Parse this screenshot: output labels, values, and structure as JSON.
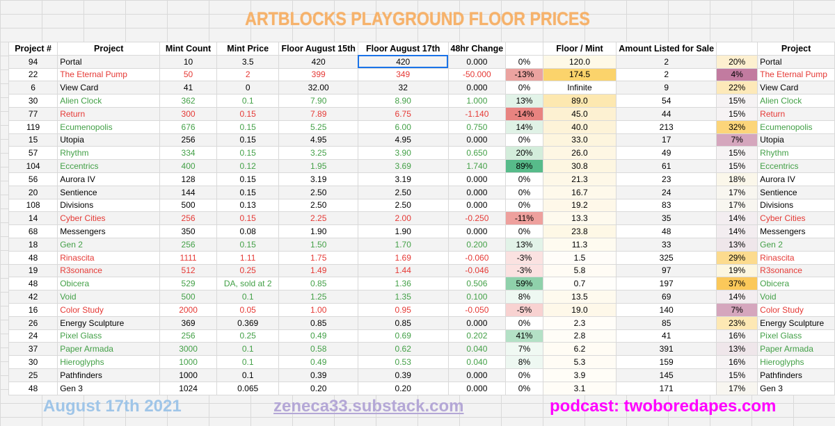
{
  "title": "ARTBLOCKS PLAYGROUND FLOOR PRICES",
  "headers": [
    "Project #",
    "Project",
    "Mint Count",
    "Mint Price",
    "Floor August 15th",
    "Floor August 17th",
    "48hr Change",
    "",
    "Floor / Mint",
    "Amount Listed for Sale",
    "",
    "Project"
  ],
  "rows": [
    {
      "num": "94",
      "project": "Portal",
      "mint_count": "10",
      "mint_price": "3.5",
      "floor15": "420",
      "floor17": "420",
      "change": "0.000",
      "pct": "0%",
      "floor_mint": "120.0",
      "listed": "2",
      "listed_pct": "20%",
      "project2": "Portal",
      "tone": "black",
      "pct_bg": "#ffffff",
      "fm_bg": "#fef9e7",
      "lp_bg": "#fdf0d0"
    },
    {
      "num": "22",
      "project": "The Eternal Pump",
      "mint_count": "50",
      "mint_price": "2",
      "floor15": "399",
      "floor17": "349",
      "change": "-50.000",
      "pct": "-13%",
      "floor_mint": "174.5",
      "listed": "2",
      "listed_pct": "4%",
      "project2": "The Eternal Pump",
      "tone": "red",
      "pct_bg": "#eba3a0",
      "fm_bg": "#fbd36b",
      "lp_bg": "#c27ba0"
    },
    {
      "num": "6",
      "project": "View Card",
      "mint_count": "41",
      "mint_price": "0",
      "floor15": "32.00",
      "floor17": "32",
      "change": "0.000",
      "pct": "0%",
      "floor_mint": "Infinite",
      "listed": "9",
      "listed_pct": "22%",
      "project2": "View Card",
      "tone": "black",
      "pct_bg": "#ffffff",
      "fm_bg": "#ffffff",
      "lp_bg": "#fde9b9"
    },
    {
      "num": "30",
      "project": "Alien Clock",
      "mint_count": "362",
      "mint_price": "0.1",
      "floor15": "7.90",
      "floor17": "8.90",
      "change": "1.000",
      "pct": "13%",
      "floor_mint": "89.0",
      "listed": "54",
      "listed_pct": "15%",
      "project2": "Alien Clock",
      "tone": "green",
      "pct_bg": "#e2f3e8",
      "fm_bg": "#fde8b0",
      "lp_bg": "#f6f3f4"
    },
    {
      "num": "77",
      "project": "Return",
      "mint_count": "300",
      "mint_price": "0.15",
      "floor15": "7.89",
      "floor17": "6.75",
      "change": "-1.140",
      "pct": "-14%",
      "floor_mint": "45.0",
      "listed": "44",
      "listed_pct": "15%",
      "project2": "Return",
      "tone": "red",
      "pct_bg": "#e88380",
      "fm_bg": "#fdf1d2",
      "lp_bg": "#f6f3f4"
    },
    {
      "num": "119",
      "project": "Ecumenopolis",
      "mint_count": "676",
      "mint_price": "0.15",
      "floor15": "5.25",
      "floor17": "6.00",
      "change": "0.750",
      "pct": "14%",
      "floor_mint": "40.0",
      "listed": "213",
      "listed_pct": "32%",
      "project2": "Ecumenopolis",
      "tone": "green",
      "pct_bg": "#e0f2e6",
      "fm_bg": "#fdf3d8",
      "lp_bg": "#fcd57a"
    },
    {
      "num": "15",
      "project": "Utopia",
      "mint_count": "256",
      "mint_price": "0.15",
      "floor15": "4.95",
      "floor17": "4.95",
      "change": "0.000",
      "pct": "0%",
      "floor_mint": "33.0",
      "listed": "17",
      "listed_pct": "7%",
      "project2": "Utopia",
      "tone": "black",
      "pct_bg": "#ffffff",
      "fm_bg": "#fdf5de",
      "lp_bg": "#d5a6bd"
    },
    {
      "num": "57",
      "project": "Rhythm",
      "mint_count": "334",
      "mint_price": "0.15",
      "floor15": "3.25",
      "floor17": "3.90",
      "change": "0.650",
      "pct": "20%",
      "floor_mint": "26.0",
      "listed": "49",
      "listed_pct": "15%",
      "project2": "Rhythm",
      "tone": "green",
      "pct_bg": "#d3eddb",
      "fm_bg": "#fef7e4",
      "lp_bg": "#f6f3f4"
    },
    {
      "num": "104",
      "project": "Eccentrics",
      "mint_count": "400",
      "mint_price": "0.12",
      "floor15": "1.95",
      "floor17": "3.69",
      "change": "1.740",
      "pct": "89%",
      "floor_mint": "30.8",
      "listed": "61",
      "listed_pct": "15%",
      "project2": "Eccentrics",
      "tone": "green",
      "pct_bg": "#57bb8a",
      "fm_bg": "#fdf6e1",
      "lp_bg": "#f6f3f4"
    },
    {
      "num": "56",
      "project": "Aurora IV",
      "mint_count": "128",
      "mint_price": "0.15",
      "floor15": "3.19",
      "floor17": "3.19",
      "change": "0.000",
      "pct": "0%",
      "floor_mint": "21.3",
      "listed": "23",
      "listed_pct": "18%",
      "project2": "Aurora IV",
      "tone": "black",
      "pct_bg": "#ffffff",
      "fm_bg": "#fef8e8",
      "lp_bg": "#fbf7ea"
    },
    {
      "num": "20",
      "project": "Sentience",
      "mint_count": "144",
      "mint_price": "0.15",
      "floor15": "2.50",
      "floor17": "2.50",
      "change": "0.000",
      "pct": "0%",
      "floor_mint": "16.7",
      "listed": "24",
      "listed_pct": "17%",
      "project2": "Sentience",
      "tone": "black",
      "pct_bg": "#ffffff",
      "fm_bg": "#fef9eb",
      "lp_bg": "#f8f6f0"
    },
    {
      "num": "108",
      "project": "Divisions",
      "mint_count": "500",
      "mint_price": "0.13",
      "floor15": "2.50",
      "floor17": "2.50",
      "change": "0.000",
      "pct": "0%",
      "floor_mint": "19.2",
      "listed": "83",
      "listed_pct": "17%",
      "project2": "Divisions",
      "tone": "black",
      "pct_bg": "#ffffff",
      "fm_bg": "#fef8e9",
      "lp_bg": "#f8f6f0"
    },
    {
      "num": "14",
      "project": "Cyber Cities",
      "mint_count": "256",
      "mint_price": "0.15",
      "floor15": "2.25",
      "floor17": "2.00",
      "change": "-0.250",
      "pct": "-11%",
      "floor_mint": "13.3",
      "listed": "35",
      "listed_pct": "14%",
      "project2": "Cyber Cities",
      "tone": "red",
      "pct_bg": "#eea09d",
      "fm_bg": "#fefaee",
      "lp_bg": "#f3edf0"
    },
    {
      "num": "68",
      "project": "Messengers",
      "mint_count": "350",
      "mint_price": "0.08",
      "floor15": "1.90",
      "floor17": "1.90",
      "change": "0.000",
      "pct": "0%",
      "floor_mint": "23.8",
      "listed": "48",
      "listed_pct": "14%",
      "project2": "Messengers",
      "tone": "black",
      "pct_bg": "#ffffff",
      "fm_bg": "#fef8e6",
      "lp_bg": "#f3edf0"
    },
    {
      "num": "18",
      "project": "Gen 2",
      "mint_count": "256",
      "mint_price": "0.15",
      "floor15": "1.50",
      "floor17": "1.70",
      "change": "0.200",
      "pct": "13%",
      "floor_mint": "11.3",
      "listed": "33",
      "listed_pct": "13%",
      "project2": "Gen 2",
      "tone": "green",
      "pct_bg": "#e2f3e8",
      "fm_bg": "#fefbf0",
      "lp_bg": "#efe6ea"
    },
    {
      "num": "48",
      "project": "Rinascita",
      "mint_count": "1111",
      "mint_price": "1.11",
      "floor15": "1.75",
      "floor17": "1.69",
      "change": "-0.060",
      "pct": "-3%",
      "floor_mint": "1.5",
      "listed": "325",
      "listed_pct": "29%",
      "project2": "Rinascita",
      "tone": "red",
      "pct_bg": "#fbe2e1",
      "fm_bg": "#fffdf9",
      "lp_bg": "#fcdb8e"
    },
    {
      "num": "19",
      "project": "R3sonance",
      "mint_count": "512",
      "mint_price": "0.25",
      "floor15": "1.49",
      "floor17": "1.44",
      "change": "-0.046",
      "pct": "-3%",
      "floor_mint": "5.8",
      "listed": "97",
      "listed_pct": "19%",
      "project2": "R3sonance",
      "tone": "red",
      "pct_bg": "#fbe2e1",
      "fm_bg": "#fffcf5",
      "lp_bg": "#fcf6e0"
    },
    {
      "num": "48",
      "project": "Obicera",
      "mint_count": "529",
      "mint_price": "DA, sold at 2",
      "floor15": "0.85",
      "floor17": "1.36",
      "change": "0.506",
      "pct": "59%",
      "floor_mint": "0.7",
      "listed": "197",
      "listed_pct": "37%",
      "project2": "Obicera",
      "tone": "green",
      "pct_bg": "#8fd1ab",
      "fm_bg": "#fffefb",
      "lp_bg": "#fbc85a"
    },
    {
      "num": "42",
      "project": "Void",
      "mint_count": "500",
      "mint_price": "0.1",
      "floor15": "1.25",
      "floor17": "1.35",
      "change": "0.100",
      "pct": "8%",
      "floor_mint": "13.5",
      "listed": "69",
      "listed_pct": "14%",
      "project2": "Void",
      "tone": "green",
      "pct_bg": "#eef8f2",
      "fm_bg": "#fefaee",
      "lp_bg": "#f3edf0"
    },
    {
      "num": "16",
      "project": "Color Study",
      "mint_count": "2000",
      "mint_price": "0.05",
      "floor15": "1.00",
      "floor17": "0.95",
      "change": "-0.050",
      "pct": "-5%",
      "floor_mint": "19.0",
      "listed": "140",
      "listed_pct": "7%",
      "project2": "Color Study",
      "tone": "red",
      "pct_bg": "#f8d2d1",
      "fm_bg": "#fef8e9",
      "lp_bg": "#d5a6bd"
    },
    {
      "num": "26",
      "project": "Energy Sculpture",
      "mint_count": "369",
      "mint_price": "0.369",
      "floor15": "0.85",
      "floor17": "0.85",
      "change": "0.000",
      "pct": "0%",
      "floor_mint": "2.3",
      "listed": "85",
      "listed_pct": "23%",
      "project2": "Energy Sculpture",
      "tone": "black",
      "pct_bg": "#ffffff",
      "fm_bg": "#fffdf8",
      "lp_bg": "#fde8b4"
    },
    {
      "num": "24",
      "project": "Pixel Glass",
      "mint_count": "256",
      "mint_price": "0.25",
      "floor15": "0.49",
      "floor17": "0.69",
      "change": "0.202",
      "pct": "41%",
      "floor_mint": "2.8",
      "listed": "41",
      "listed_pct": "16%",
      "project2": "Pixel Glass",
      "tone": "green",
      "pct_bg": "#b4e1c6",
      "fm_bg": "#fffdf7",
      "lp_bg": "#f6f3f4"
    },
    {
      "num": "37",
      "project": "Paper Armada",
      "mint_count": "3000",
      "mint_price": "0.1",
      "floor15": "0.58",
      "floor17": "0.62",
      "change": "0.040",
      "pct": "7%",
      "floor_mint": "6.2",
      "listed": "391",
      "listed_pct": "13%",
      "project2": "Paper Armada",
      "tone": "green",
      "pct_bg": "#f0f9f3",
      "fm_bg": "#fffcf4",
      "lp_bg": "#efe6ea"
    },
    {
      "num": "30",
      "project": "Hieroglyphs",
      "mint_count": "1000",
      "mint_price": "0.1",
      "floor15": "0.49",
      "floor17": "0.53",
      "change": "0.040",
      "pct": "8%",
      "floor_mint": "5.3",
      "listed": "159",
      "listed_pct": "16%",
      "project2": "Hieroglyphs",
      "tone": "green",
      "pct_bg": "#eef8f2",
      "fm_bg": "#fffcf5",
      "lp_bg": "#f6f3f4"
    },
    {
      "num": "25",
      "project": "Pathfinders",
      "mint_count": "1000",
      "mint_price": "0.1",
      "floor15": "0.39",
      "floor17": "0.39",
      "change": "0.000",
      "pct": "0%",
      "floor_mint": "3.9",
      "listed": "145",
      "listed_pct": "15%",
      "project2": "Pathfinders",
      "tone": "black",
      "pct_bg": "#ffffff",
      "fm_bg": "#fffdf7",
      "lp_bg": "#f6f3f4"
    },
    {
      "num": "48",
      "project": "Gen 3",
      "mint_count": "1024",
      "mint_price": "0.065",
      "floor15": "0.20",
      "floor17": "0.20",
      "change": "0.000",
      "pct": "0%",
      "floor_mint": "3.1",
      "listed": "171",
      "listed_pct": "17%",
      "project2": "Gen 3",
      "tone": "black",
      "pct_bg": "#ffffff",
      "fm_bg": "#fffdf7",
      "lp_bg": "#f8f6f0"
    }
  ],
  "footer": {
    "date": "August 17th 2021",
    "substack": "zeneca33.substack.com",
    "podcast": "podcast: twoboredapes.com"
  },
  "colors": {
    "title": "#f6b26b",
    "red_text": "#e53935",
    "green_text": "#43a047",
    "selection": "#1a73e8"
  }
}
